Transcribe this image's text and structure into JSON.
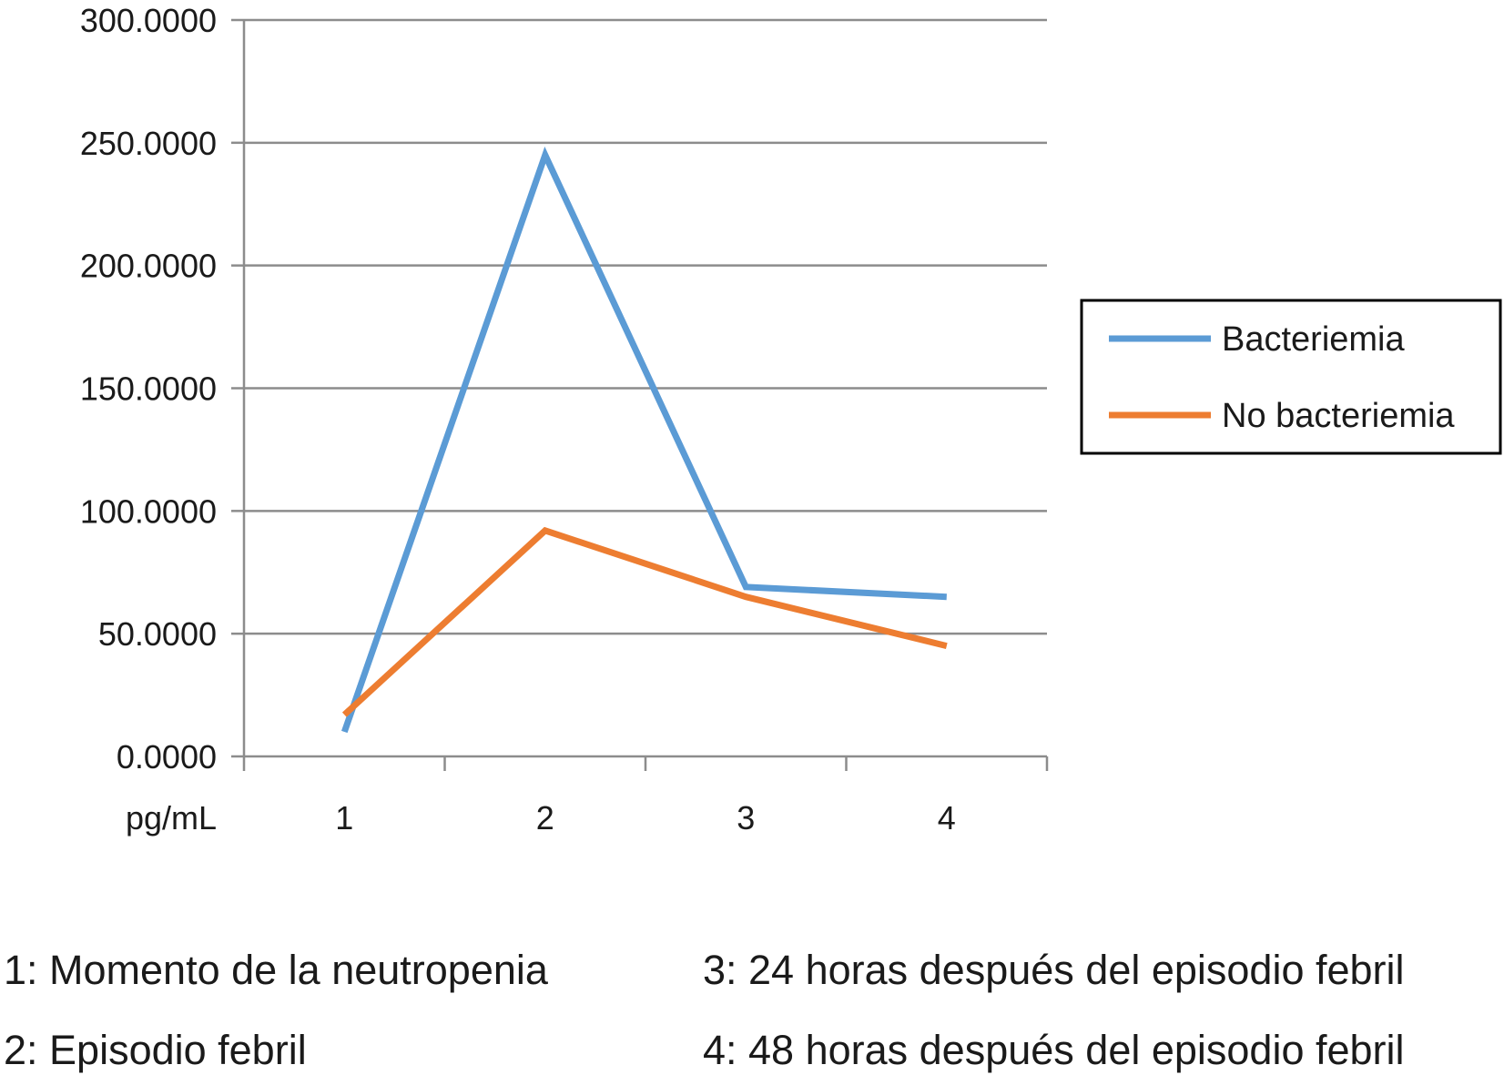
{
  "chart_data": {
    "type": "line",
    "categories": [
      "1",
      "2",
      "3",
      "4"
    ],
    "series": [
      {
        "name": "Bacteriemia",
        "color": "#5b9bd5",
        "values": [
          10,
          245,
          69,
          65
        ]
      },
      {
        "name": "No bacteriemia",
        "color": "#ed7d31",
        "values": [
          17,
          92,
          65,
          45
        ]
      }
    ],
    "ylim": [
      0,
      300
    ],
    "yticks": [
      "0.0000",
      "50.0000",
      "100.0000",
      "150.0000",
      "200.0000",
      "250.0000",
      "300.0000"
    ],
    "xlabel": "pg/mL",
    "grid": true,
    "legend_position": "right"
  },
  "footnotes": {
    "note1": "1: Momento de la neutropenia",
    "note2": "2: Episodio febril",
    "note3": "3: 24 horas después del episodio febril",
    "note4": "4: 48 horas después del episodio febril"
  }
}
